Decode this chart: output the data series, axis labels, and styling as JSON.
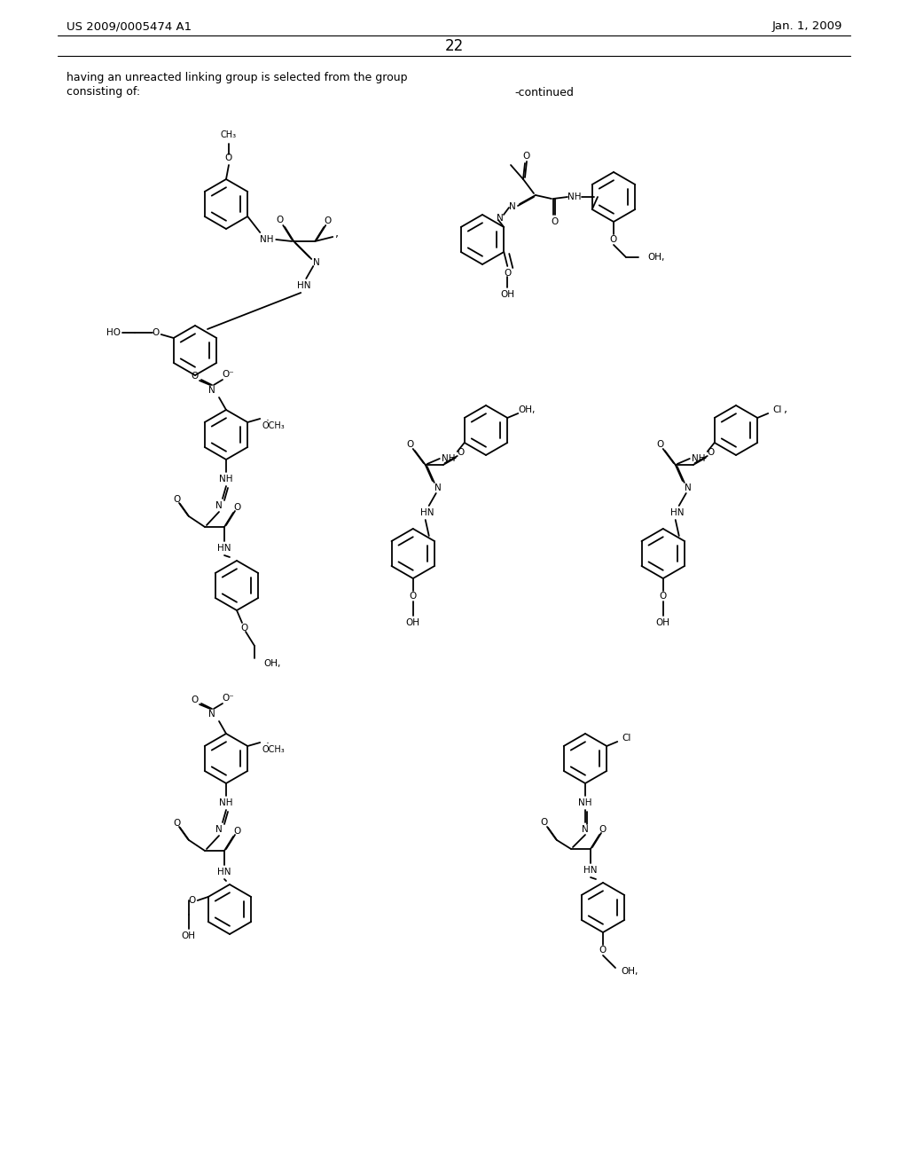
{
  "page_number": "22",
  "patent_number": "US 2009/0005474 A1",
  "patent_date": "Jan. 1, 2009",
  "header_text1": "having an unreacted linking group is selected from the group",
  "header_text2": "consisting of:",
  "continued_text": "-continued",
  "background_color": "#ffffff",
  "text_color": "#000000"
}
